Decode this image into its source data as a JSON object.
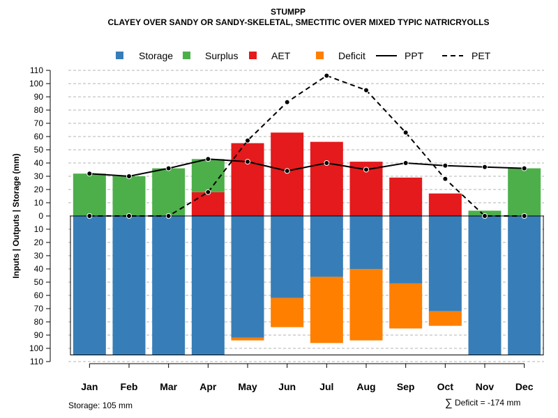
{
  "chart_data": {
    "type": "bar",
    "title": "STUMPP",
    "subtitle": "CLAYEY OVER SANDY OR SANDY-SKELETAL, SMECTITIC OVER MIXED TYPIC NATRICRYOLLS",
    "ylabel": "Inputs | Outputs | Storage     (mm)",
    "ylim": [
      -110,
      110
    ],
    "y_ticks": [
      -110,
      -100,
      -90,
      -80,
      -70,
      -60,
      -50,
      -40,
      -30,
      -20,
      -10,
      0,
      10,
      20,
      30,
      40,
      50,
      60,
      70,
      80,
      90,
      100,
      110
    ],
    "y_tick_labels": [
      "110",
      "100",
      "90",
      "80",
      "70",
      "60",
      "50",
      "40",
      "30",
      "20",
      "10",
      "0",
      "10",
      "20",
      "30",
      "40",
      "50",
      "60",
      "70",
      "80",
      "90",
      "100",
      "110"
    ],
    "categories": [
      "Jan",
      "Feb",
      "Mar",
      "Apr",
      "May",
      "Jun",
      "Jul",
      "Aug",
      "Sep",
      "Oct",
      "Nov",
      "Dec"
    ],
    "series": [
      {
        "name": "Storage",
        "color": "#377EB8",
        "values": [
          105,
          105,
          105,
          105,
          92,
          62,
          46,
          40,
          51,
          72,
          105,
          105
        ]
      },
      {
        "name": "Surplus",
        "color": "#4DAF4A",
        "values": [
          32,
          30,
          36,
          25,
          0,
          0,
          0,
          0,
          0,
          0,
          4,
          36
        ]
      },
      {
        "name": "AET",
        "color": "#E41A1C",
        "values": [
          0,
          0,
          0,
          18,
          55,
          63,
          56,
          41,
          29,
          17,
          0,
          0
        ]
      },
      {
        "name": "Deficit",
        "color": "#FF7F00",
        "values": [
          0,
          0,
          0,
          0,
          2,
          22,
          50,
          54,
          34,
          11,
          0,
          0
        ]
      },
      {
        "name": "PPT",
        "color": "#000000",
        "style": "solid",
        "values": [
          32,
          30,
          36,
          43,
          41,
          34,
          40,
          35,
          40,
          38,
          37,
          36
        ]
      },
      {
        "name": "PET",
        "color": "#000000",
        "style": "dashed",
        "values": [
          0,
          0,
          0,
          18,
          57,
          86,
          106,
          95,
          63,
          28,
          0,
          0
        ]
      }
    ],
    "legend": [
      "Storage",
      "Surplus",
      "AET",
      "Deficit",
      "PPT",
      "PET"
    ],
    "legend_position": "top",
    "grid": true
  },
  "footer": {
    "storage_text": "Storage: 105 mm",
    "deficit_symbol": "∑",
    "deficit_text": "Deficit = -174 mm"
  }
}
